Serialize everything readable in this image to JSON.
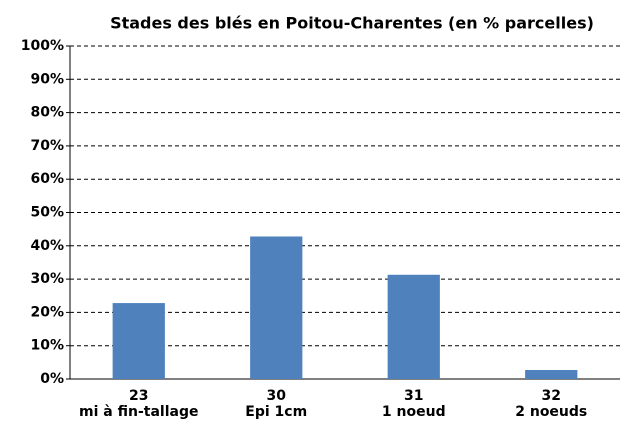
{
  "chart_data": {
    "type": "bar",
    "title": "Stades des blés en Poitou-Charentes (en % parcelles)",
    "categories": [
      [
        "23",
        "mi à fin-tallage"
      ],
      [
        "30",
        "Epi 1cm"
      ],
      [
        "31",
        "1 noeud"
      ],
      [
        "32",
        "2 noeuds"
      ]
    ],
    "values": [
      22.8,
      42.8,
      31.3,
      2.7
    ],
    "color": "#4f81bd",
    "ylim": [
      0,
      100
    ],
    "yticks": [
      {
        "value": 0,
        "label": "0%"
      },
      {
        "value": 10,
        "label": "10%"
      },
      {
        "value": 20,
        "label": "20%"
      },
      {
        "value": 30,
        "label": "30%"
      },
      {
        "value": 40,
        "label": "40%"
      },
      {
        "value": 50,
        "label": "50%"
      },
      {
        "value": 60,
        "label": "60%"
      },
      {
        "value": 70,
        "label": "70%"
      },
      {
        "value": 80,
        "label": "80%"
      },
      {
        "value": 90,
        "label": "90%"
      },
      {
        "value": 100,
        "label": "100%"
      }
    ],
    "grid": true
  }
}
